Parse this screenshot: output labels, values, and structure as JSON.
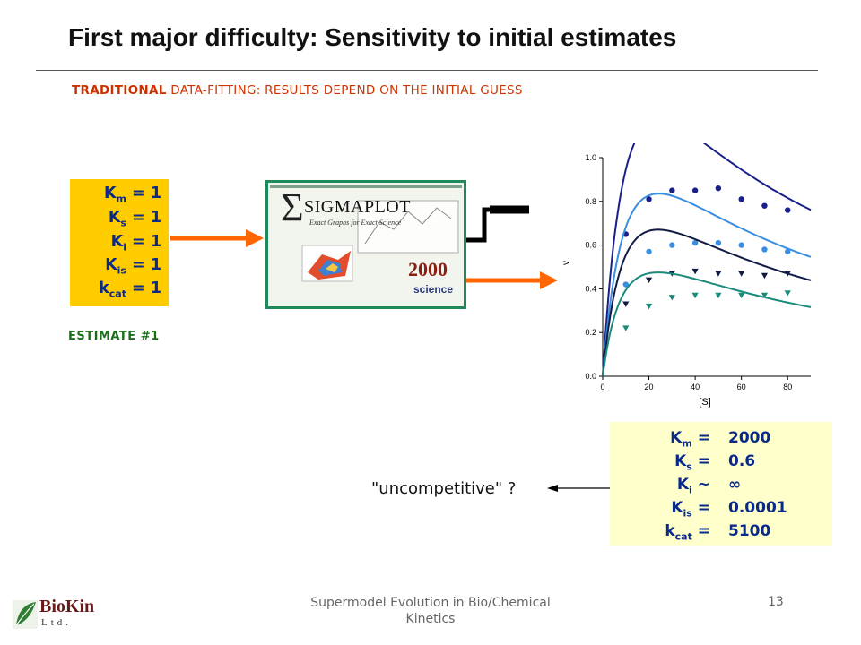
{
  "slide": {
    "title": "First major difficulty: Sensitivity to initial estimates",
    "subtitle_bold": "TRADITIONAL",
    "subtitle_rest": " DATA-FITTING: RESULTS DEPEND ON THE INITIAL GUESS",
    "page_number": "13",
    "footer": "Supermodel Evolution in Bio/Chemical Kinetics"
  },
  "estimate": {
    "label": "ESTIMATE #1",
    "rows": [
      {
        "sym": "K",
        "sub": "m",
        "text": " = 1"
      },
      {
        "sym": "K",
        "sub": "s",
        "text": " = 1"
      },
      {
        "sym": "K",
        "sub": "i",
        "text": " = 1"
      },
      {
        "sym": "K",
        "sub": "is",
        "text": " = 1"
      },
      {
        "sym": "k",
        "sub": "cat",
        "text": " = 1"
      }
    ]
  },
  "sigmaplot": {
    "brand": "SIGMAPLOT",
    "tagline": "Exact Graphs for Exact Science",
    "version": "2000",
    "maker": "science"
  },
  "results": {
    "rows": [
      {
        "sym": "K",
        "sub": "m",
        "op": " =",
        "value": "2000"
      },
      {
        "sym": "K",
        "sub": "s",
        "op": " =",
        "value": "0.6"
      },
      {
        "sym": "K",
        "sub": "i",
        "op": " ~",
        "value": "∞"
      },
      {
        "sym": "K",
        "sub": "is",
        "op": " =",
        "value": "0.0001"
      },
      {
        "sym": "k",
        "sub": "cat",
        "op": " =",
        "value": "5100"
      }
    ]
  },
  "annotation": "\"uncompetitive\" ?",
  "logo": {
    "name": "BioKin",
    "suffix": "Ltd."
  },
  "colors": {
    "accent_orange": "#ff6600",
    "estimate_bg": "#ffcc00",
    "result_bg": "#ffffcc",
    "text_blue": "#0a2a8a"
  },
  "chart_data": {
    "type": "scatter",
    "xlabel": "[S]",
    "ylabel": "v",
    "xlim": [
      0,
      90
    ],
    "ylim": [
      0,
      1.0
    ],
    "xticks": [
      "0",
      "20",
      "40",
      "60",
      "80"
    ],
    "yticks": [
      "0.0",
      "0.2",
      "0.4",
      "0.6",
      "0.8",
      "1.0"
    ],
    "series": [
      {
        "color": "#1a1f8a",
        "marker": "circle",
        "x": [
          10,
          20,
          30,
          40,
          50,
          60,
          70,
          80
        ],
        "y": [
          0.65,
          0.81,
          0.85,
          0.85,
          0.86,
          0.81,
          0.78,
          0.76
        ],
        "curve": {
          "vmax": 2.6,
          "km": 15,
          "ki": 40
        }
      },
      {
        "color": "#3a8ee0",
        "marker": "circle",
        "x": [
          10,
          20,
          30,
          40,
          50,
          60,
          70,
          80
        ],
        "y": [
          0.42,
          0.57,
          0.6,
          0.61,
          0.61,
          0.6,
          0.58,
          0.57
        ],
        "curve": {
          "vmax": 1.8,
          "km": 14,
          "ki": 42
        }
      },
      {
        "color": "#101a45",
        "marker": "triangle-down",
        "x": [
          10,
          20,
          30,
          40,
          50,
          60,
          70,
          80
        ],
        "y": [
          0.33,
          0.44,
          0.47,
          0.48,
          0.47,
          0.47,
          0.46,
          0.47
        ],
        "curve": {
          "vmax": 1.4,
          "km": 13,
          "ki": 44
        }
      },
      {
        "color": "#1a8a7a",
        "marker": "triangle-down",
        "x": [
          10,
          20,
          30,
          40,
          50,
          60,
          70,
          80
        ],
        "y": [
          0.22,
          0.32,
          0.36,
          0.37,
          0.37,
          0.37,
          0.37,
          0.38
        ],
        "curve": {
          "vmax": 0.95,
          "km": 12,
          "ki": 48
        }
      }
    ]
  }
}
